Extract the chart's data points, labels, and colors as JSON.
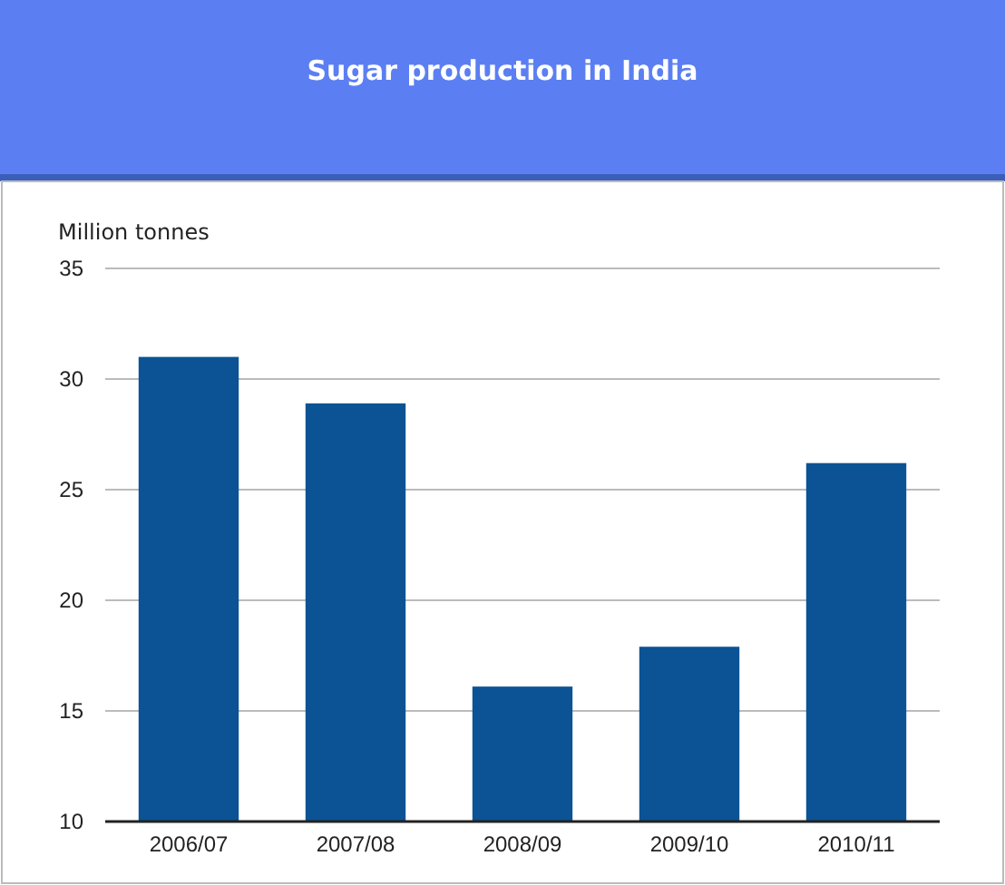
{
  "chart_data": {
    "type": "bar",
    "title": "Sugar production in India",
    "ylabel": "Million tonnes",
    "categories": [
      "2006/07",
      "2007/08",
      "2008/09",
      "2009/10",
      "2010/11"
    ],
    "values": [
      31.0,
      28.9,
      16.1,
      17.9,
      26.2
    ],
    "color": "#0b5394",
    "ylim": [
      10,
      35
    ],
    "yticks": [
      10,
      15,
      20,
      25,
      30,
      35
    ],
    "grid": "y"
  }
}
